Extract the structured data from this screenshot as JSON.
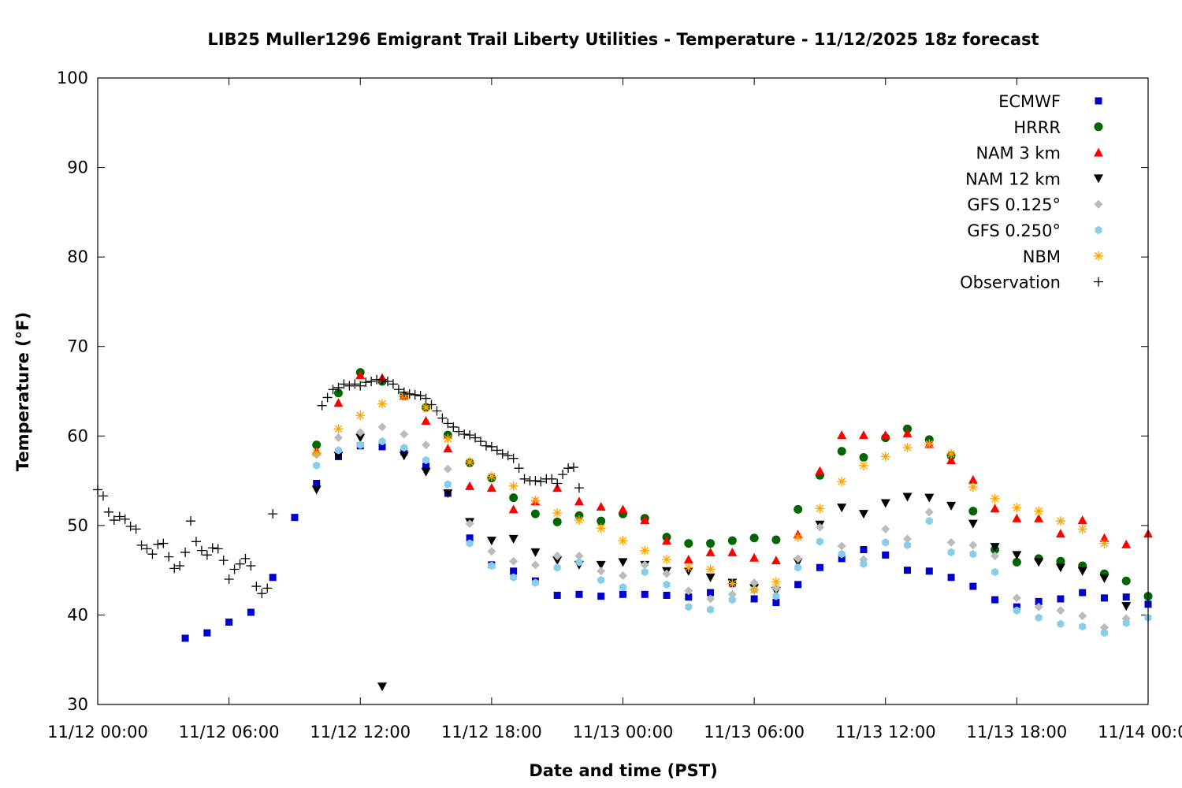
{
  "chart_data": {
    "type": "scatter",
    "title": "LIB25 Muller1296 Emigrant Trail Liberty Utilities - Temperature - 11/12/2025 18z forecast",
    "xlabel": "Date and time (PST)",
    "ylabel": "Temperature (°F)",
    "x_unit": "hours since 11/12 00:00",
    "xlim": [
      0,
      48
    ],
    "ylim": [
      30,
      100
    ],
    "x_ticks": [
      {
        "value": 0,
        "label": "11/12 00:00"
      },
      {
        "value": 6,
        "label": "11/12 06:00"
      },
      {
        "value": 12,
        "label": "11/12 12:00"
      },
      {
        "value": 18,
        "label": "11/12 18:00"
      },
      {
        "value": 24,
        "label": "11/13 00:00"
      },
      {
        "value": 30,
        "label": "11/13 06:00"
      },
      {
        "value": 36,
        "label": "11/13 12:00"
      },
      {
        "value": 42,
        "label": "11/13 18:00"
      },
      {
        "value": 48,
        "label": "11/14 00:00"
      }
    ],
    "y_ticks": [
      {
        "value": 30,
        "label": "30"
      },
      {
        "value": 40,
        "label": "40"
      },
      {
        "value": 50,
        "label": "50"
      },
      {
        "value": 60,
        "label": "60"
      },
      {
        "value": 70,
        "label": "70"
      },
      {
        "value": 80,
        "label": "80"
      },
      {
        "value": 90,
        "label": "90"
      },
      {
        "value": 100,
        "label": "100"
      }
    ],
    "grid": false,
    "legend_position": "top-right",
    "series": [
      {
        "name": "ECMWF",
        "marker": "square",
        "color": "#0000cc",
        "x": [
          4,
          5,
          6,
          7,
          8,
          9,
          10,
          11,
          12,
          13,
          14,
          15,
          16,
          17,
          18,
          19,
          20,
          21,
          22,
          23,
          24,
          25,
          26,
          27,
          28,
          29,
          30,
          31,
          32,
          33,
          34,
          35,
          36,
          37,
          38,
          39,
          40,
          41,
          42,
          43,
          44,
          45,
          46,
          47,
          48
        ],
        "y": [
          37.4,
          38,
          39.2,
          40.3,
          44.2,
          50.9,
          54.7,
          57.7,
          58.9,
          58.8,
          58.2,
          56.6,
          53.6,
          48.6,
          45.6,
          44.9,
          43.8,
          42.2,
          42.3,
          42.1,
          42.3,
          42.3,
          42.2,
          42,
          42.5,
          43.5,
          41.8,
          41.4,
          43.4,
          45.3,
          46.3,
          47.3,
          46.7,
          45,
          44.9,
          44.2,
          43.2,
          41.7,
          40.9,
          41.5,
          41.8,
          42.5,
          41.9,
          42,
          41.2
        ]
      },
      {
        "name": "HRRR",
        "marker": "circle",
        "color": "#006600",
        "x": [
          10,
          11,
          12,
          13,
          14,
          15,
          16,
          17,
          18,
          19,
          20,
          21,
          22,
          23,
          24,
          25,
          26,
          27,
          28,
          29,
          30,
          31,
          32,
          33,
          34,
          35,
          36,
          37,
          38,
          39,
          40,
          41,
          42,
          43,
          44,
          45,
          46,
          47,
          48
        ],
        "y": [
          59,
          64.8,
          67.1,
          66.1,
          64.5,
          63.2,
          60.1,
          57,
          55.3,
          53.1,
          51.3,
          50.4,
          51.1,
          50.5,
          51.3,
          50.8,
          48.7,
          48,
          48,
          48.3,
          48.6,
          48.4,
          51.8,
          55.6,
          58.3,
          57.6,
          59.8,
          60.8,
          59.6,
          57.8,
          51.6,
          47.3,
          45.9,
          46.3,
          46,
          45.5,
          44.6,
          43.8,
          42.1
        ]
      },
      {
        "name": "NAM 3 km",
        "marker": "triangle-up",
        "color": "#ff0000",
        "x": [
          10,
          11,
          12,
          13,
          14,
          15,
          16,
          17,
          18,
          19,
          20,
          21,
          22,
          23,
          24,
          25,
          26,
          27,
          28,
          29,
          30,
          31,
          32,
          33,
          34,
          35,
          36,
          37,
          38,
          39,
          40,
          41,
          42,
          43,
          44,
          45,
          46,
          47,
          48
        ],
        "y": [
          58.3,
          63.7,
          66.8,
          66.5,
          64.5,
          61.7,
          58.6,
          54.4,
          54.2,
          51.8,
          52.7,
          54.2,
          52.7,
          52.1,
          51.8,
          50.6,
          48.3,
          46.2,
          47,
          47,
          46.4,
          46.1,
          49,
          56.1,
          60.1,
          60.1,
          60.1,
          60.3,
          59.1,
          57.3,
          55.1,
          51.9,
          50.8,
          50.8,
          49.1,
          50.6,
          48.6,
          47.9,
          49.1
        ]
      },
      {
        "name": "NAM 12 km",
        "marker": "triangle-down",
        "color": "#000000",
        "x": [
          10,
          11,
          12,
          13,
          14,
          15,
          16,
          17,
          18,
          19,
          20,
          21,
          22,
          23,
          24,
          25,
          26,
          27,
          28,
          29,
          30,
          31,
          32,
          33,
          34,
          35,
          36,
          37,
          38,
          39,
          40,
          41,
          42,
          43,
          44,
          45,
          46,
          47
        ],
        "y": [
          54,
          57.8,
          59.8,
          32,
          57.8,
          56,
          53.6,
          50.4,
          48.3,
          48.5,
          47,
          46.1,
          45.6,
          45.6,
          45.9,
          45.6,
          44.9,
          44.9,
          44.2,
          43.6,
          43,
          42.7,
          45.9,
          50.1,
          52,
          51.3,
          52.5,
          53.2,
          53.1,
          52.2,
          50.2,
          47.6,
          46.7,
          45.9,
          45.3,
          44.9,
          44.1,
          41
        ]
      },
      {
        "name": "GFS 0.125°",
        "marker": "diamond",
        "color": "#bbbbbb",
        "x": [
          10,
          11,
          12,
          13,
          14,
          15,
          16,
          17,
          18,
          19,
          20,
          21,
          22,
          23,
          24,
          25,
          26,
          27,
          28,
          29,
          30,
          31,
          32,
          33,
          34,
          35,
          36,
          37,
          38,
          39,
          40,
          41,
          42,
          43,
          44,
          45,
          46,
          47
        ],
        "y": [
          57.9,
          59.8,
          60.4,
          61,
          60.2,
          59,
          56.3,
          50.2,
          47.1,
          46,
          45.6,
          46.6,
          46.6,
          44.9,
          44.4,
          45.6,
          44.6,
          42.7,
          41.8,
          42.3,
          43.6,
          43,
          46.3,
          49.8,
          47.7,
          46.2,
          49.6,
          48.5,
          51.5,
          48.1,
          47.8,
          46.6,
          41.9,
          40.9,
          40.5,
          39.9,
          38.6,
          39.6
        ]
      },
      {
        "name": "GFS 0.250°",
        "marker": "hexagon",
        "color": "#87ceeb",
        "x": [
          10,
          11,
          12,
          13,
          14,
          15,
          16,
          17,
          18,
          19,
          20,
          21,
          22,
          23,
          24,
          25,
          26,
          27,
          28,
          29,
          30,
          31,
          32,
          33,
          34,
          35,
          36,
          37,
          38,
          39,
          40,
          41,
          42,
          43,
          44,
          45,
          46,
          47,
          48
        ],
        "y": [
          56.7,
          58.4,
          59,
          59.4,
          58.7,
          57.3,
          54.6,
          48,
          45.5,
          44.2,
          43.6,
          45.3,
          45.9,
          43.9,
          43.1,
          44.8,
          43.4,
          40.9,
          40.6,
          41.7,
          42.8,
          42.1,
          45.3,
          48.2,
          46.8,
          45.7,
          48.1,
          47.8,
          50.5,
          47,
          46.8,
          44.8,
          40.5,
          39.7,
          39,
          38.7,
          38,
          39.1,
          39.7
        ]
      },
      {
        "name": "NBM",
        "marker": "star",
        "color": "#ffa500",
        "x": [
          10,
          11,
          12,
          13,
          14,
          15,
          16,
          17,
          18,
          19,
          20,
          21,
          22,
          23,
          24,
          25,
          26,
          27,
          28,
          29,
          30,
          31,
          32,
          33,
          34,
          35,
          36,
          37,
          38,
          39,
          40,
          41,
          42,
          43,
          44,
          45,
          46
        ],
        "y": [
          58.1,
          60.8,
          62.3,
          63.6,
          64.5,
          63.2,
          59.7,
          57.1,
          55.5,
          54.4,
          52.8,
          51.4,
          50.6,
          49.7,
          48.3,
          47.2,
          46.2,
          45.3,
          45.1,
          43.5,
          42.8,
          43.7,
          48.7,
          51.9,
          54.9,
          56.7,
          57.7,
          58.7,
          59.1,
          58,
          54.3,
          53,
          52,
          51.6,
          50.5,
          49.6,
          48
        ]
      },
      {
        "name": "Observation",
        "marker": "plus",
        "color": "#000000",
        "x": [
          0,
          0.25,
          0.5,
          0.75,
          1,
          1.25,
          1.5,
          1.75,
          2,
          2.25,
          2.5,
          2.75,
          3,
          3.25,
          3.5,
          3.75,
          4,
          4.25,
          4.5,
          4.75,
          5,
          5.25,
          5.5,
          5.75,
          6,
          6.25,
          6.5,
          6.75,
          7,
          7.25,
          7.5,
          7.75,
          8,
          8.25,
          8.5,
          8.75,
          9,
          9.25,
          9.5,
          9.75,
          10,
          10.25,
          10.5,
          10.75,
          11,
          11.25,
          11.5,
          11.75,
          12,
          12.25,
          12.5,
          12.75,
          13,
          13.25,
          13.5,
          13.75,
          14,
          14.25,
          14.5,
          14.75,
          15,
          15.25,
          15.5,
          15.75,
          16,
          16.25,
          16.5,
          16.75,
          17,
          17.25,
          17.5,
          17.75,
          18,
          18.25,
          18.5,
          18.75,
          19,
          19.25,
          19.5,
          19.75,
          20,
          20.25,
          20.5,
          20.75,
          21,
          21.25,
          21.5,
          21.75,
          22
        ],
        "y": [
          54,
          53.3,
          51.5,
          50.6,
          51,
          50.7,
          49.9,
          49.6,
          47.8,
          47.4,
          46.8,
          47.9,
          48,
          46.5,
          45.2,
          45.5,
          47,
          50.5,
          48.2,
          47.2,
          46.7,
          47.5,
          47.4,
          46.1,
          44,
          45.1,
          45.7,
          46.3,
          45.5,
          43.2,
          42.4,
          43,
          51.3,
          null,
          null,
          null,
          null,
          null,
          null,
          null,
          null,
          63.4,
          64.3,
          65.2,
          65.4,
          65.8,
          65.6,
          65.8,
          65.6,
          66,
          66.1,
          66.3,
          66.3,
          66.1,
          65.8,
          65.2,
          64.9,
          64.7,
          64.6,
          64.5,
          64.2,
          63.5,
          62.8,
          62,
          61.4,
          61,
          60.5,
          60.2,
          60.1,
          59.8,
          59.4,
          58.9,
          58.8,
          58.4,
          58,
          57.8,
          57.5,
          56.4,
          55.2,
          55,
          55,
          54.9,
          55.2,
          55.2,
          54.7,
          55.7,
          56.4,
          56.5,
          54.2
        ]
      }
    ]
  }
}
